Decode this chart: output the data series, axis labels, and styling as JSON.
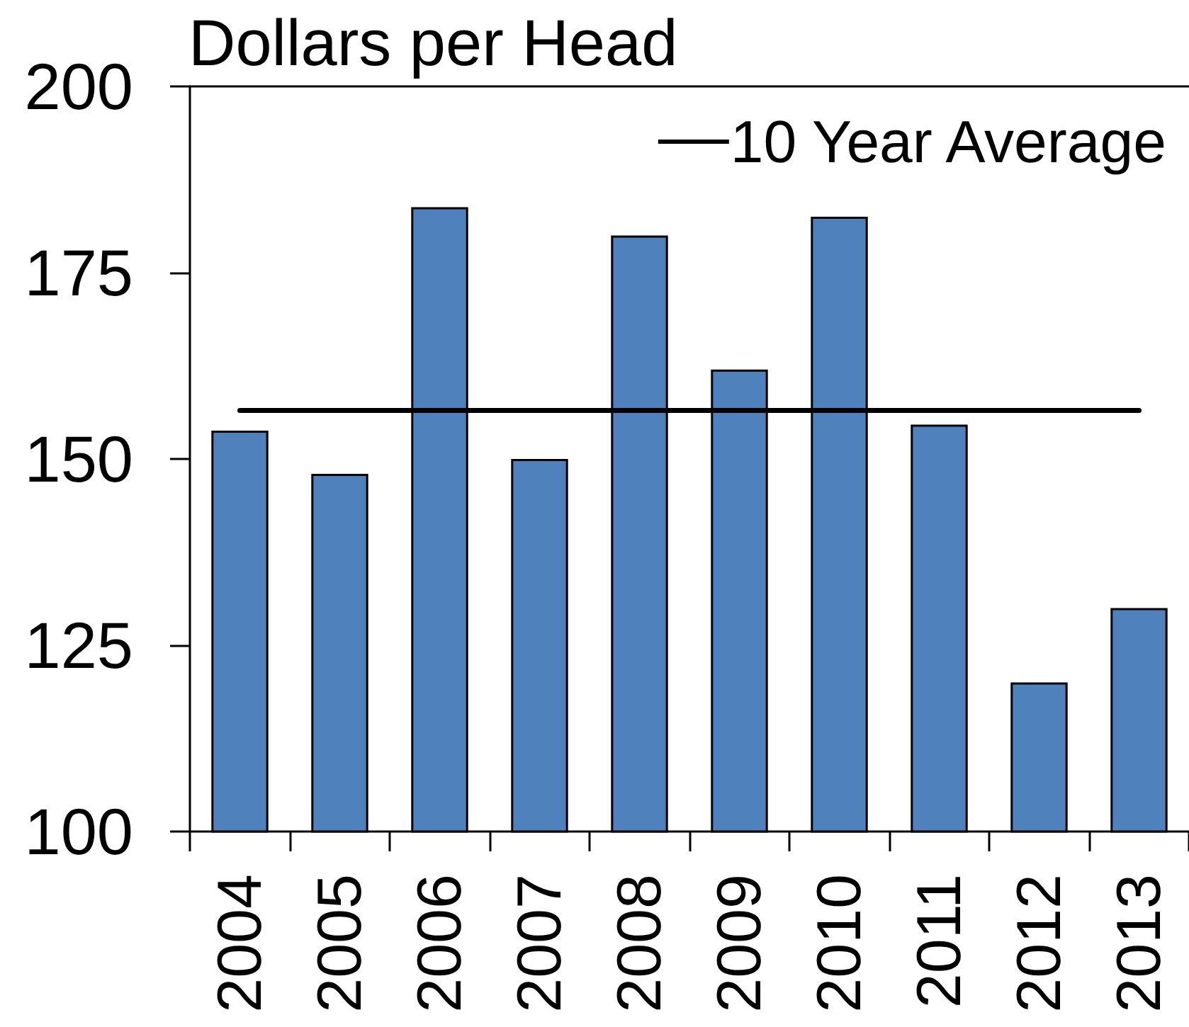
{
  "chart_data": {
    "type": "bar",
    "title": "Dollars per Head",
    "categories": [
      "2004",
      "2005",
      "2006",
      "2007",
      "2008",
      "2009",
      "2010",
      "2011",
      "2012",
      "2013"
    ],
    "series": [
      {
        "color": "#4f81bd",
        "values": [
          153.8,
          148,
          183.8,
          150,
          180,
          162,
          182.5,
          154.6,
          120,
          130
        ]
      },
      {
        "name": "10 Year Average",
        "type": "line",
        "color": "#000000",
        "values": [
          156.5,
          156.5,
          156.5,
          156.5,
          156.5,
          156.5,
          156.5,
          156.5,
          156.5,
          156.5
        ]
      }
    ],
    "ylim": [
      100,
      200
    ],
    "yticks": [
      100,
      125,
      150,
      175,
      200
    ],
    "legend": "top right",
    "marker": "none"
  }
}
